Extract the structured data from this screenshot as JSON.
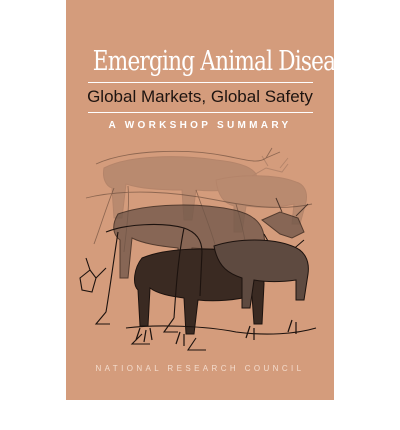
{
  "cover": {
    "title": "Emerging Animal Diseases",
    "subtitle": "Global Markets, Global Safety",
    "series_line": "A WORKSHOP SUMMARY",
    "publisher": "NATIONAL RESEARCH COUNCIL",
    "illustration_icon": "cattle-herd-icon",
    "colors": {
      "background": "#d49c7c",
      "title": "#ffffff",
      "subtitle": "#1e1410",
      "line_art": "#2a1c16"
    }
  }
}
